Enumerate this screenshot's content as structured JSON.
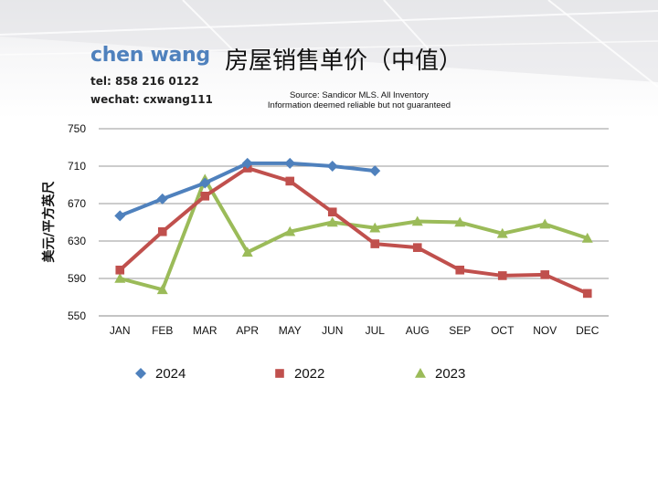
{
  "header": {
    "author": "chen wang",
    "tel": "tel: 858 216 0122",
    "wechat": "wechat: cxwang111",
    "title": "房屋销售单价（中值）",
    "source_line1": "Source: Sandicor MLS. All Inventory",
    "source_line2": "Information deemed reliable but not guaranteed"
  },
  "chart_data": {
    "type": "line",
    "title": "房屋销售单价（中值）",
    "ylabel": "美元/平方英尺",
    "xlabel": "",
    "categories": [
      "JAN",
      "FEB",
      "MAR",
      "APR",
      "MAY",
      "JUN",
      "JUL",
      "AUG",
      "SEP",
      "OCT",
      "NOV",
      "DEC"
    ],
    "ylim": [
      550,
      750
    ],
    "yticks": [
      550,
      590,
      630,
      670,
      710,
      750
    ],
    "grid": true,
    "legend_position": "bottom",
    "series": [
      {
        "name": "2024",
        "color": "#4f81bd",
        "marker": "diamond",
        "values": [
          657,
          675,
          692,
          713,
          713,
          710,
          705,
          null,
          null,
          null,
          null,
          null
        ]
      },
      {
        "name": "2022",
        "color": "#c0504d",
        "marker": "square",
        "values": [
          599,
          640,
          678,
          708,
          694,
          661,
          627,
          623,
          599,
          593,
          594,
          574
        ]
      },
      {
        "name": "2023",
        "color": "#9bbb59",
        "marker": "triangle",
        "values": [
          590,
          578,
          696,
          618,
          640,
          650,
          644,
          651,
          650,
          638,
          648,
          633
        ]
      }
    ]
  }
}
